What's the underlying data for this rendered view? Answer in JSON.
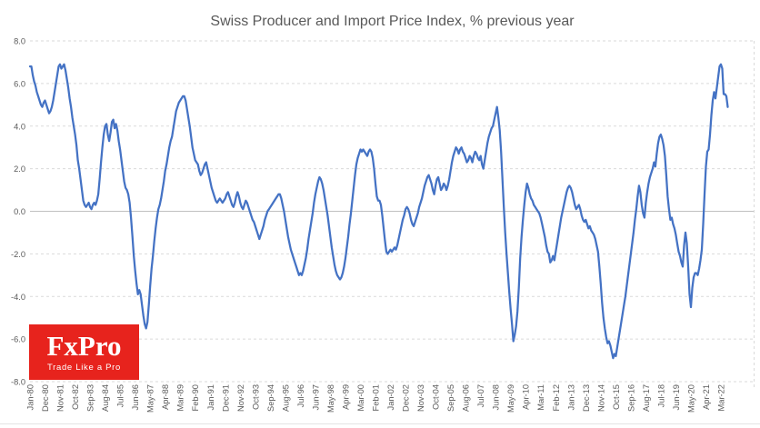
{
  "title": "Swiss Producer and Import Price Index, % previous year",
  "logo": {
    "brand": "FxPro",
    "tagline": "Trade Like a Pro",
    "bg_color": "#e7231d",
    "text_color": "#ffffff"
  },
  "colors": {
    "line": "#4472C4",
    "grid": "#dadada",
    "zero_line": "#c0c0c0",
    "axis_text": "#595959",
    "title_text": "#595959",
    "background": "#ffffff"
  },
  "chart_data": {
    "type": "line",
    "title": "Swiss Producer and Import Price Index, % previous year",
    "xlabel": "",
    "ylabel": "",
    "x_start": "Jan-1980",
    "x_end": "Aug-2022",
    "frequency": "monthly",
    "ylim": [
      -8,
      8
    ],
    "ytick_step": 2,
    "ytick_labels": [
      "8.0",
      "6.0",
      "4.0",
      "2.0",
      "0.0",
      "-2.0",
      "-4.0",
      "-6.0",
      "-8.0"
    ],
    "xtick_every_months": 11,
    "xtick_labels": [
      "Jan-80",
      "Dec-80",
      "Nov-81",
      "Oct-82",
      "Sep-83",
      "Aug-84",
      "Jul-85",
      "Jun-86",
      "May-87",
      "Apr-88",
      "Mar-89",
      "Feb-90",
      "Jan-91",
      "Dec-91",
      "Nov-92",
      "Oct-93",
      "Sep-94",
      "Aug-95",
      "Jul-96",
      "Jun-97",
      "May-98",
      "Apr-99",
      "Mar-00",
      "Feb-01",
      "Jan-02",
      "Dec-02",
      "Nov-03",
      "Oct-04",
      "Sep-05",
      "Aug-06",
      "Jul-07",
      "Jun-08",
      "May-09",
      "Apr-10",
      "Mar-11",
      "Feb-12",
      "Jan-13",
      "Dec-13",
      "Nov-14",
      "Oct-15",
      "Sep-16",
      "Aug-17",
      "Jul-18",
      "Jun-19",
      "May-20",
      "Apr-21",
      "Mar-22"
    ],
    "grid": "horizontal-dashed",
    "legend": "none",
    "values": [
      6.8,
      6.8,
      6.4,
      6.1,
      5.9,
      5.6,
      5.4,
      5.2,
      5.0,
      4.9,
      5.1,
      5.2,
      5.0,
      4.8,
      4.6,
      4.7,
      4.9,
      5.2,
      5.6,
      6.0,
      6.4,
      6.8,
      6.9,
      6.7,
      6.8,
      6.9,
      6.6,
      6.2,
      5.8,
      5.3,
      4.9,
      4.4,
      4.0,
      3.6,
      3.1,
      2.4,
      2.0,
      1.5,
      1.0,
      0.5,
      0.3,
      0.2,
      0.3,
      0.4,
      0.2,
      0.1,
      0.3,
      0.4,
      0.3,
      0.5,
      0.8,
      1.5,
      2.3,
      3.0,
      3.6,
      4.0,
      4.1,
      3.6,
      3.3,
      3.7,
      4.2,
      4.3,
      3.9,
      4.1,
      3.8,
      3.3,
      2.9,
      2.4,
      1.9,
      1.4,
      1.1,
      1.0,
      0.8,
      0.4,
      -0.3,
      -1.2,
      -2.1,
      -2.8,
      -3.4,
      -3.9,
      -3.7,
      -3.9,
      -4.4,
      -4.9,
      -5.3,
      -5.5,
      -5.2,
      -4.4,
      -3.5,
      -2.7,
      -2.1,
      -1.4,
      -0.8,
      -0.3,
      0.1,
      0.3,
      0.6,
      1.0,
      1.4,
      1.9,
      2.2,
      2.6,
      3.0,
      3.3,
      3.5,
      3.9,
      4.3,
      4.7,
      4.9,
      5.1,
      5.2,
      5.3,
      5.4,
      5.4,
      5.2,
      4.8,
      4.4,
      4.0,
      3.5,
      3.0,
      2.7,
      2.4,
      2.3,
      2.2,
      1.9,
      1.7,
      1.8,
      2.0,
      2.2,
      2.3,
      2.0,
      1.7,
      1.4,
      1.1,
      0.9,
      0.7,
      0.5,
      0.4,
      0.5,
      0.6,
      0.5,
      0.4,
      0.5,
      0.6,
      0.8,
      0.9,
      0.7,
      0.5,
      0.3,
      0.2,
      0.4,
      0.7,
      0.9,
      0.7,
      0.4,
      0.2,
      0.1,
      0.3,
      0.5,
      0.4,
      0.2,
      0.0,
      -0.2,
      -0.4,
      -0.5,
      -0.7,
      -0.9,
      -1.1,
      -1.3,
      -1.1,
      -0.9,
      -0.7,
      -0.4,
      -0.2,
      0.0,
      0.1,
      0.2,
      0.3,
      0.4,
      0.5,
      0.6,
      0.7,
      0.8,
      0.8,
      0.6,
      0.3,
      0.0,
      -0.4,
      -0.8,
      -1.2,
      -1.5,
      -1.8,
      -2.0,
      -2.2,
      -2.4,
      -2.6,
      -2.8,
      -3.0,
      -2.9,
      -3.0,
      -2.8,
      -2.5,
      -2.2,
      -1.8,
      -1.3,
      -0.9,
      -0.5,
      -0.1,
      0.4,
      0.8,
      1.1,
      1.4,
      1.6,
      1.5,
      1.3,
      1.0,
      0.6,
      0.2,
      -0.2,
      -0.7,
      -1.2,
      -1.7,
      -2.1,
      -2.5,
      -2.8,
      -3.0,
      -3.1,
      -3.2,
      -3.1,
      -2.9,
      -2.6,
      -2.2,
      -1.7,
      -1.2,
      -0.6,
      -0.1,
      0.5,
      1.1,
      1.7,
      2.2,
      2.5,
      2.7,
      2.9,
      2.8,
      2.9,
      2.8,
      2.7,
      2.6,
      2.8,
      2.9,
      2.8,
      2.5,
      2.0,
      1.3,
      0.7,
      0.5,
      0.5,
      0.3,
      -0.2,
      -0.8,
      -1.4,
      -1.9,
      -2.0,
      -1.9,
      -1.8,
      -1.9,
      -1.8,
      -1.7,
      -1.8,
      -1.6,
      -1.3,
      -1.0,
      -0.7,
      -0.4,
      -0.2,
      0.1,
      0.2,
      0.1,
      -0.1,
      -0.4,
      -0.6,
      -0.7,
      -0.5,
      -0.3,
      -0.1,
      0.2,
      0.4,
      0.6,
      0.9,
      1.2,
      1.4,
      1.6,
      1.7,
      1.5,
      1.3,
      1.0,
      0.8,
      1.2,
      1.5,
      1.6,
      1.3,
      1.0,
      1.1,
      1.3,
      1.2,
      1.0,
      1.2,
      1.5,
      1.9,
      2.3,
      2.6,
      2.8,
      3.0,
      2.9,
      2.7,
      2.9,
      3.0,
      2.8,
      2.7,
      2.5,
      2.3,
      2.4,
      2.6,
      2.5,
      2.3,
      2.6,
      2.8,
      2.7,
      2.5,
      2.4,
      2.6,
      2.2,
      2.0,
      2.4,
      2.8,
      3.2,
      3.5,
      3.7,
      3.9,
      4.0,
      4.3,
      4.6,
      4.9,
      4.4,
      3.8,
      2.8,
      1.5,
      0.2,
      -1.0,
      -2.0,
      -2.9,
      -3.8,
      -4.6,
      -5.3,
      -6.1,
      -5.8,
      -5.4,
      -4.7,
      -3.6,
      -2.2,
      -1.2,
      -0.4,
      0.3,
      0.9,
      1.3,
      1.1,
      0.8,
      0.6,
      0.5,
      0.3,
      0.2,
      0.1,
      0.0,
      -0.1,
      -0.3,
      -0.6,
      -0.9,
      -1.2,
      -1.6,
      -1.9,
      -2.0,
      -2.4,
      -2.3,
      -2.1,
      -2.3,
      -1.9,
      -1.5,
      -1.1,
      -0.7,
      -0.3,
      0.0,
      0.3,
      0.6,
      0.9,
      1.1,
      1.2,
      1.1,
      0.9,
      0.6,
      0.3,
      0.1,
      0.2,
      0.3,
      0.1,
      -0.2,
      -0.4,
      -0.5,
      -0.4,
      -0.6,
      -0.8,
      -0.7,
      -0.9,
      -1.0,
      -1.1,
      -1.3,
      -1.6,
      -1.9,
      -2.6,
      -3.4,
      -4.3,
      -5.0,
      -5.5,
      -5.9,
      -6.2,
      -6.1,
      -6.3,
      -6.6,
      -6.9,
      -6.7,
      -6.8,
      -6.4,
      -6.0,
      -5.6,
      -5.2,
      -4.8,
      -4.4,
      -4.0,
      -3.5,
      -3.0,
      -2.5,
      -2.0,
      -1.5,
      -1.0,
      -0.4,
      0.1,
      0.7,
      1.2,
      0.9,
      0.3,
      -0.1,
      -0.3,
      0.4,
      0.9,
      1.3,
      1.6,
      1.8,
      2.0,
      2.3,
      2.1,
      2.7,
      3.2,
      3.5,
      3.6,
      3.4,
      3.1,
      2.6,
      1.7,
      0.7,
      0.1,
      -0.4,
      -0.3,
      -0.6,
      -0.8,
      -1.1,
      -1.5,
      -1.9,
      -2.1,
      -2.4,
      -2.6,
      -1.6,
      -1.0,
      -1.5,
      -2.6,
      -3.9,
      -4.5,
      -3.6,
      -3.1,
      -2.9,
      -2.9,
      -3.0,
      -2.7,
      -2.3,
      -1.8,
      -0.6,
      0.8,
      2.1,
      2.8,
      2.9,
      3.6,
      4.5,
      5.2,
      5.6,
      5.3,
      5.8,
      6.3,
      6.8,
      6.9,
      6.7,
      5.5,
      5.5,
      5.4,
      4.9
    ]
  }
}
